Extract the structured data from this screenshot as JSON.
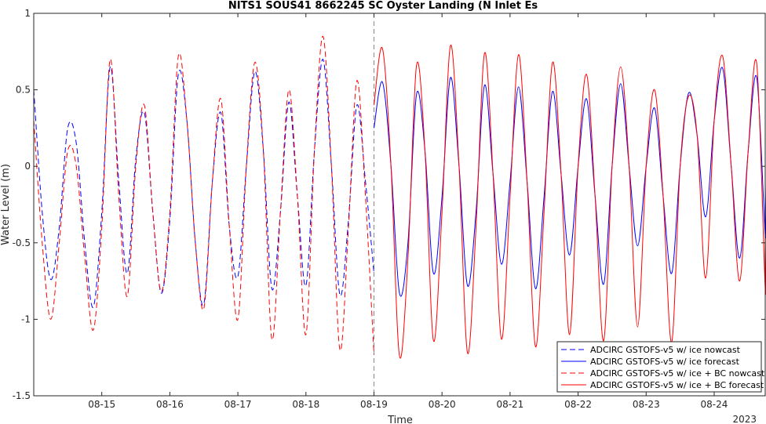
{
  "chart_data": {
    "type": "line",
    "title": "NITS1 SOUS41 8662245 SC Oyster Landing (N Inlet Es",
    "xlabel": "Time",
    "ylabel": "Water Level (m)",
    "year_label": "2023",
    "xlim": [
      "2023-08-14 00:00",
      "2023-08-24 18:00"
    ],
    "ylim": [
      -1.5,
      1
    ],
    "yticks": [
      -1.5,
      -1,
      -0.5,
      0,
      0.5,
      1
    ],
    "ytick_labels": [
      "-1.5",
      "-1",
      "-0.5",
      "0",
      "0.5",
      "1"
    ],
    "xticks": [
      "2023-08-15",
      "2023-08-16",
      "2023-08-17",
      "2023-08-18",
      "2023-08-19",
      "2023-08-20",
      "2023-08-21",
      "2023-08-22",
      "2023-08-23",
      "2023-08-24"
    ],
    "xtick_labels": [
      "08-15",
      "08-16",
      "08-17",
      "08-18",
      "08-19",
      "08-20",
      "08-21",
      "08-22",
      "08-23",
      "08-24"
    ],
    "nowcast_forecast_boundary": "2023-08-19 00:00",
    "grid": false,
    "legend_position": "bottom-right",
    "series": [
      {
        "name": "ADCIRC GSTOFS-v5 w/ ice nowcast",
        "color": "#0000ff",
        "style": "dashed",
        "points": [
          [
            "2023-08-14 00:00",
            0.5
          ],
          [
            "2023-08-14 03:00",
            -0.3
          ],
          [
            "2023-08-14 06:00",
            -0.74
          ],
          [
            "2023-08-14 09:00",
            -0.4
          ],
          [
            "2023-08-14 12:00",
            0.25
          ],
          [
            "2023-08-14 15:00",
            0.15
          ],
          [
            "2023-08-14 18:00",
            -0.5
          ],
          [
            "2023-08-14 21:00",
            -0.92
          ],
          [
            "2023-08-15 00:00",
            -0.3
          ],
          [
            "2023-08-15 03:00",
            0.65
          ],
          [
            "2023-08-15 06:00",
            -0.1
          ],
          [
            "2023-08-15 09:00",
            -0.7
          ],
          [
            "2023-08-15 12:00",
            0.05
          ],
          [
            "2023-08-15 15:00",
            0.35
          ],
          [
            "2023-08-15 18:00",
            -0.3
          ],
          [
            "2023-08-15 21:00",
            -0.83
          ],
          [
            "2023-08-16 00:00",
            -0.35
          ],
          [
            "2023-08-16 03:00",
            0.6
          ],
          [
            "2023-08-16 06:00",
            0.3
          ],
          [
            "2023-08-16 09:00",
            -0.5
          ],
          [
            "2023-08-16 12:00",
            -0.9
          ],
          [
            "2023-08-16 15:00",
            -0.1
          ],
          [
            "2023-08-16 18:00",
            0.35
          ],
          [
            "2023-08-16 21:00",
            -0.4
          ],
          [
            "2023-08-17 00:00",
            -0.72
          ],
          [
            "2023-08-17 03:00",
            0.0
          ],
          [
            "2023-08-17 06:00",
            0.62
          ],
          [
            "2023-08-17 09:00",
            0.1
          ],
          [
            "2023-08-17 12:00",
            -0.8
          ],
          [
            "2023-08-17 15:00",
            -0.3
          ],
          [
            "2023-08-17 18:00",
            0.42
          ],
          [
            "2023-08-17 21:00",
            -0.2
          ],
          [
            "2023-08-18 00:00",
            -0.78
          ],
          [
            "2023-08-18 03:00",
            0.1
          ],
          [
            "2023-08-18 06:00",
            0.7
          ],
          [
            "2023-08-18 09:00",
            0.0
          ],
          [
            "2023-08-18 12:00",
            -0.84
          ],
          [
            "2023-08-18 15:00",
            -0.35
          ],
          [
            "2023-08-18 18:00",
            0.4
          ],
          [
            "2023-08-18 21:00",
            -0.1
          ],
          [
            "2023-08-19 00:00",
            -0.7
          ]
        ]
      },
      {
        "name": "ADCIRC GSTOFS-v5 w/ ice forecast",
        "color": "#0000ff",
        "style": "solid",
        "points": [
          [
            "2023-08-19 00:00",
            0.25
          ],
          [
            "2023-08-19 03:00",
            0.55
          ],
          [
            "2023-08-19 06:00",
            0.0
          ],
          [
            "2023-08-19 09:00",
            -0.83
          ],
          [
            "2023-08-19 12:00",
            -0.5
          ],
          [
            "2023-08-19 15:00",
            0.47
          ],
          [
            "2023-08-19 18:00",
            0.1
          ],
          [
            "2023-08-19 21:00",
            -0.7
          ],
          [
            "2023-08-20 00:00",
            -0.2
          ],
          [
            "2023-08-20 03:00",
            0.58
          ],
          [
            "2023-08-20 06:00",
            0.0
          ],
          [
            "2023-08-20 09:00",
            -0.78
          ],
          [
            "2023-08-20 12:00",
            -0.3
          ],
          [
            "2023-08-20 15:00",
            0.53
          ],
          [
            "2023-08-20 18:00",
            -0.05
          ],
          [
            "2023-08-20 21:00",
            -0.64
          ],
          [
            "2023-08-21 00:00",
            -0.1
          ],
          [
            "2023-08-21 03:00",
            0.52
          ],
          [
            "2023-08-21 06:00",
            -0.1
          ],
          [
            "2023-08-21 09:00",
            -0.8
          ],
          [
            "2023-08-21 12:00",
            -0.2
          ],
          [
            "2023-08-21 15:00",
            0.49
          ],
          [
            "2023-08-21 18:00",
            -0.05
          ],
          [
            "2023-08-21 21:00",
            -0.58
          ],
          [
            "2023-08-22 00:00",
            0.0
          ],
          [
            "2023-08-22 03:00",
            0.44
          ],
          [
            "2023-08-22 06:00",
            -0.2
          ],
          [
            "2023-08-22 09:00",
            -0.77
          ],
          [
            "2023-08-22 12:00",
            0.0
          ],
          [
            "2023-08-22 15:00",
            0.54
          ],
          [
            "2023-08-22 18:00",
            0.0
          ],
          [
            "2023-08-22 21:00",
            -0.52
          ],
          [
            "2023-08-23 00:00",
            0.0
          ],
          [
            "2023-08-23 03:00",
            0.38
          ],
          [
            "2023-08-23 06:00",
            -0.2
          ],
          [
            "2023-08-23 09:00",
            -0.7
          ],
          [
            "2023-08-23 12:00",
            0.0
          ],
          [
            "2023-08-23 15:00",
            0.48
          ],
          [
            "2023-08-23 18:00",
            0.2
          ],
          [
            "2023-08-23 21:00",
            -0.33
          ],
          [
            "2023-08-24 00:00",
            0.3
          ],
          [
            "2023-08-24 03:00",
            0.64
          ],
          [
            "2023-08-24 06:00",
            0.0
          ],
          [
            "2023-08-24 09:00",
            -0.6
          ],
          [
            "2023-08-24 12:00",
            0.1
          ],
          [
            "2023-08-24 15:00",
            0.58
          ],
          [
            "2023-08-24 18:00",
            -0.45
          ],
          [
            "2023-08-24 18:00",
            -0.1
          ]
        ]
      },
      {
        "name": "ADCIRC GSTOFS-v5 w/ ice + BC nowcast",
        "color": "#ff0000",
        "style": "dashed",
        "points": [
          [
            "2023-08-14 00:00",
            0.3
          ],
          [
            "2023-08-14 03:00",
            -0.5
          ],
          [
            "2023-08-14 06:00",
            -1.0
          ],
          [
            "2023-08-14 09:00",
            -0.5
          ],
          [
            "2023-08-14 12:00",
            0.1
          ],
          [
            "2023-08-14 15:00",
            0.0
          ],
          [
            "2023-08-14 18:00",
            -0.6
          ],
          [
            "2023-08-14 21:00",
            -1.07
          ],
          [
            "2023-08-15 00:00",
            -0.4
          ],
          [
            "2023-08-15 03:00",
            0.7
          ],
          [
            "2023-08-15 06:00",
            -0.2
          ],
          [
            "2023-08-15 09:00",
            -0.85
          ],
          [
            "2023-08-15 12:00",
            0.0
          ],
          [
            "2023-08-15 15:00",
            0.4
          ],
          [
            "2023-08-15 18:00",
            -0.3
          ],
          [
            "2023-08-15 21:00",
            -0.82
          ],
          [
            "2023-08-16 00:00",
            -0.3
          ],
          [
            "2023-08-16 03:00",
            0.72
          ],
          [
            "2023-08-16 06:00",
            0.3
          ],
          [
            "2023-08-16 09:00",
            -0.5
          ],
          [
            "2023-08-16 12:00",
            -0.93
          ],
          [
            "2023-08-16 15:00",
            -0.1
          ],
          [
            "2023-08-16 18:00",
            0.44
          ],
          [
            "2023-08-16 21:00",
            -0.4
          ],
          [
            "2023-08-17 00:00",
            -1.0
          ],
          [
            "2023-08-17 03:00",
            0.0
          ],
          [
            "2023-08-17 06:00",
            0.68
          ],
          [
            "2023-08-17 09:00",
            0.1
          ],
          [
            "2023-08-17 12:00",
            -1.13
          ],
          [
            "2023-08-17 15:00",
            -0.3
          ],
          [
            "2023-08-17 18:00",
            0.5
          ],
          [
            "2023-08-17 21:00",
            -0.2
          ],
          [
            "2023-08-18 00:00",
            -1.1
          ],
          [
            "2023-08-18 03:00",
            0.1
          ],
          [
            "2023-08-18 06:00",
            0.85
          ],
          [
            "2023-08-18 09:00",
            0.0
          ],
          [
            "2023-08-18 12:00",
            -1.2
          ],
          [
            "2023-08-18 15:00",
            -0.4
          ],
          [
            "2023-08-18 18:00",
            0.56
          ],
          [
            "2023-08-18 21:00",
            -0.2
          ],
          [
            "2023-08-19 00:00",
            -1.23
          ]
        ]
      },
      {
        "name": "ADCIRC GSTOFS-v5 w/ ice + BC forecast",
        "color": "#ff0000",
        "style": "solid",
        "points": [
          [
            "2023-08-19 00:00",
            0.4
          ],
          [
            "2023-08-19 03:00",
            0.77
          ],
          [
            "2023-08-19 06:00",
            0.0
          ],
          [
            "2023-08-19 09:00",
            -1.24
          ],
          [
            "2023-08-19 12:00",
            -0.6
          ],
          [
            "2023-08-19 15:00",
            0.66
          ],
          [
            "2023-08-19 18:00",
            0.1
          ],
          [
            "2023-08-19 21:00",
            -1.14
          ],
          [
            "2023-08-20 00:00",
            -0.3
          ],
          [
            "2023-08-20 03:00",
            0.79
          ],
          [
            "2023-08-20 06:00",
            0.0
          ],
          [
            "2023-08-20 09:00",
            -1.22
          ],
          [
            "2023-08-20 12:00",
            -0.4
          ],
          [
            "2023-08-20 15:00",
            0.74
          ],
          [
            "2023-08-20 18:00",
            -0.05
          ],
          [
            "2023-08-20 21:00",
            -1.13
          ],
          [
            "2023-08-21 00:00",
            -0.2
          ],
          [
            "2023-08-21 03:00",
            0.73
          ],
          [
            "2023-08-21 06:00",
            -0.1
          ],
          [
            "2023-08-21 09:00",
            -1.18
          ],
          [
            "2023-08-21 12:00",
            -0.3
          ],
          [
            "2023-08-21 15:00",
            0.68
          ],
          [
            "2023-08-21 18:00",
            -0.05
          ],
          [
            "2023-08-21 21:00",
            -1.1
          ],
          [
            "2023-08-22 00:00",
            0.0
          ],
          [
            "2023-08-22 03:00",
            0.6
          ],
          [
            "2023-08-22 06:00",
            -0.2
          ],
          [
            "2023-08-22 09:00",
            -1.14
          ],
          [
            "2023-08-22 12:00",
            0.0
          ],
          [
            "2023-08-22 15:00",
            0.65
          ],
          [
            "2023-08-22 18:00",
            0.0
          ],
          [
            "2023-08-22 21:00",
            -1.05
          ],
          [
            "2023-08-23 00:00",
            0.0
          ],
          [
            "2023-08-23 03:00",
            0.5
          ],
          [
            "2023-08-23 06:00",
            -0.2
          ],
          [
            "2023-08-23 09:00",
            -1.15
          ],
          [
            "2023-08-23 12:00",
            0.0
          ],
          [
            "2023-08-23 15:00",
            0.46
          ],
          [
            "2023-08-23 18:00",
            0.2
          ],
          [
            "2023-08-23 21:00",
            -0.73
          ],
          [
            "2023-08-24 00:00",
            0.3
          ],
          [
            "2023-08-24 03:00",
            0.72
          ],
          [
            "2023-08-24 06:00",
            0.0
          ],
          [
            "2023-08-24 09:00",
            -0.75
          ],
          [
            "2023-08-24 12:00",
            0.1
          ],
          [
            "2023-08-24 15:00",
            0.67
          ],
          [
            "2023-08-24 18:00",
            -0.8
          ],
          [
            "2023-08-24 18:00",
            -0.4
          ]
        ]
      }
    ]
  }
}
